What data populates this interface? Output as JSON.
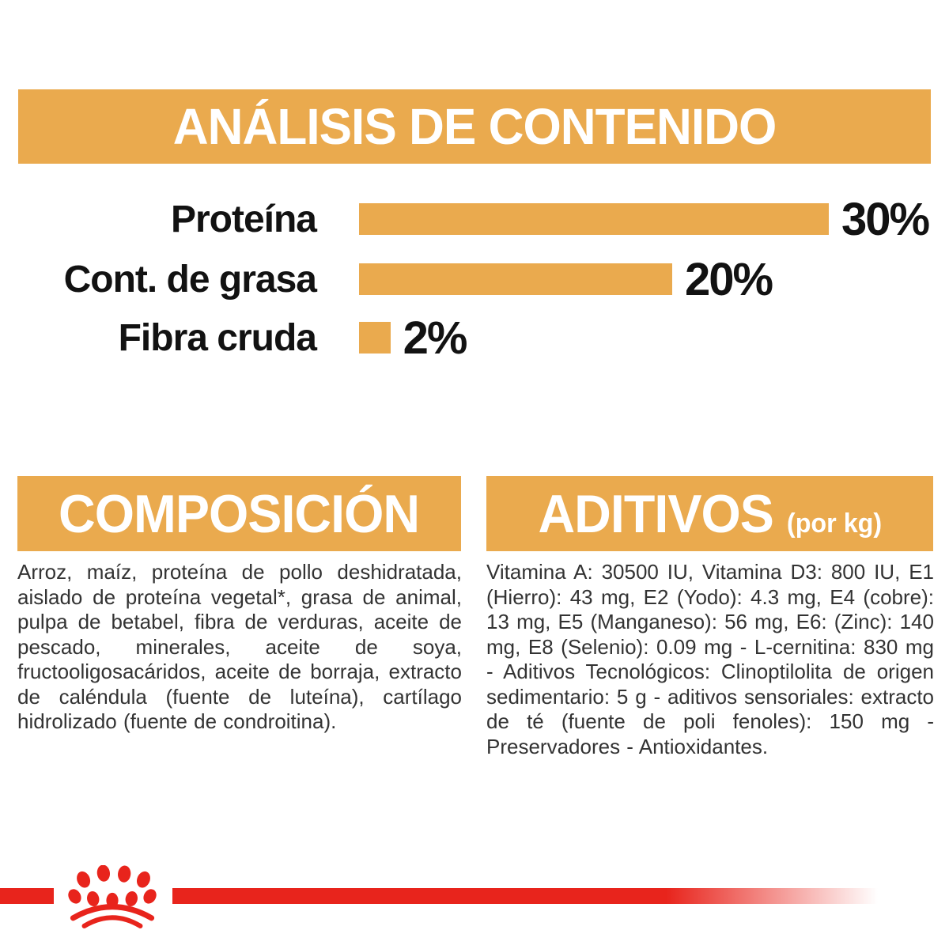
{
  "colors": {
    "orange": "#EAAA4E",
    "red": "#E8241C",
    "ink": "#121212",
    "body_text": "#333333"
  },
  "banner": {
    "title": "ANÁLISIS DE CONTENIDO"
  },
  "chart_data": {
    "type": "bar",
    "orientation": "horizontal",
    "title": "ANÁLISIS DE CONTENIDO",
    "categories": [
      "Proteína",
      "Cont. de grasa",
      "Fibra cruda"
    ],
    "values": [
      30,
      20,
      2
    ],
    "unit": "%",
    "value_labels": [
      "30%",
      "20%",
      "2%"
    ],
    "xlim": [
      0,
      30
    ],
    "grid": false,
    "bar_color": "#EAAA4E",
    "value_label_position": "right-of-bar"
  },
  "sections": {
    "composicion": {
      "title": "COMPOSICIÓN",
      "body": "Arroz, maíz, proteína de pollo deshidratada, aislado de proteína vegetal*, grasa de animal, pulpa de betabel, fibra de verduras, aceite de pescado, minerales, aceite de soya, fructooligosacáridos, aceite de borraja, extracto de caléndula (fuente de luteína), cartílago hidrolizado (fuente de condroitina)."
    },
    "aditivos": {
      "title": "ADITIVOS",
      "title_suffix": "(por kg)",
      "body": "Vitamina A: 30500 IU, Vitamina D3: 800 IU, E1 (Hierro): 43 mg, E2 (Yodo): 4.3 mg, E4 (cobre): 13 mg, E5 (Manganeso): 56 mg, E6: (Zinc): 140 mg, E8 (Selenio): 0.09 mg - L-cernitina: 830 mg - Aditivos Tecnológicos: Clinoptilolita de origen sedimentario: 5 g - aditivos sensoriales: extracto de té (fuente de poli fenoles): 150 mg - Preservadores - Antioxidantes."
    }
  },
  "footer": {
    "logo": "royal-canin-crown-logo"
  }
}
